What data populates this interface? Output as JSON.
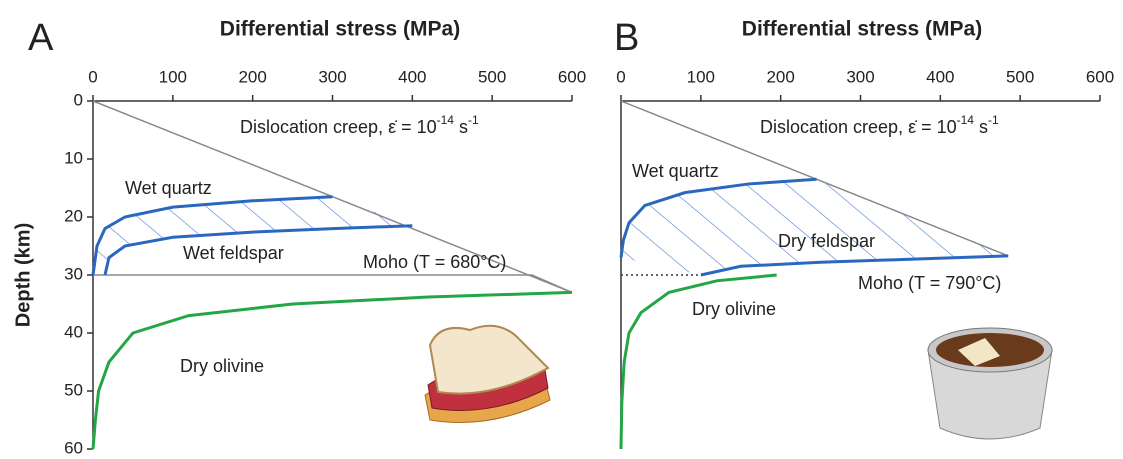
{
  "chart_data": [
    {
      "type": "line",
      "panel_label": "A",
      "title": "Differential stress (MPa)",
      "y_label": "Depth (km)",
      "xlim": [
        0,
        600
      ],
      "xticks": [
        0,
        100,
        200,
        300,
        400,
        500,
        600
      ],
      "ylim": [
        0,
        60
      ],
      "yticks": [
        0,
        10,
        20,
        30,
        40,
        50,
        60
      ],
      "creep_label": {
        "main": "Dislocation creep, ε̇ = 10",
        "exponent": "-14",
        "unit": " s",
        "unit_exponent": "-1"
      },
      "moho_label": "Moho (T = 680°C)",
      "series": [
        {
          "color": "#8a8a8a",
          "x": [
            0,
            600
          ],
          "values": [
            0,
            33
          ]
        },
        {
          "color": "#8a8a8a",
          "x": [
            0,
            550,
            600
          ],
          "values": [
            30,
            30,
            33
          ]
        },
        {
          "name": "Wet quartz",
          "color": "#2a68c0",
          "x": [
            0,
            5,
            15,
            40,
            100,
            200,
            300
          ],
          "values": [
            30,
            25,
            22,
            20,
            18.3,
            17.2,
            16.5
          ]
        },
        {
          "name": "Wet feldspar",
          "color": "#2a68c0",
          "x": [
            15,
            20,
            40,
            100,
            200,
            300,
            400
          ],
          "values": [
            30,
            27,
            25,
            23.5,
            22.6,
            22,
            21.5
          ]
        },
        {
          "name": "Dry olivine",
          "color": "#23a646",
          "x": [
            0,
            3,
            7,
            20,
            50,
            120,
            250,
            420,
            600
          ],
          "values": [
            60,
            55,
            50,
            45,
            40,
            37,
            35,
            33.8,
            33
          ]
        }
      ]
    },
    {
      "type": "line",
      "panel_label": "B",
      "title": "Differential stress (MPa)",
      "xlim": [
        0,
        600
      ],
      "xticks": [
        0,
        100,
        200,
        300,
        400,
        500,
        600
      ],
      "ylim": [
        0,
        60
      ],
      "creep_label": {
        "main": "Dislocation creep, ε̇ = 10",
        "exponent": "-14",
        "unit": " s",
        "unit_exponent": "-1"
      },
      "moho_label": "Moho (T = 790°C)",
      "series": [
        {
          "color": "#8a8a8a",
          "x": [
            0,
            485
          ],
          "values": [
            0,
            26.7
          ]
        },
        {
          "color": "#333333",
          "line_style": "dotted",
          "x": [
            0,
            100
          ],
          "values": [
            30,
            30
          ]
        },
        {
          "name": "Wet quartz",
          "color": "#2a68c0",
          "x": [
            0,
            3,
            10,
            30,
            80,
            160,
            245
          ],
          "values": [
            27,
            24,
            21,
            18,
            15.8,
            14.3,
            13.5
          ]
        },
        {
          "name": "Dry feldspar",
          "color": "#2a68c0",
          "x": [
            100,
            150,
            250,
            380,
            485
          ],
          "values": [
            30,
            28.5,
            27.8,
            27.2,
            26.7
          ]
        },
        {
          "name": "Dry olivine",
          "color": "#23a646",
          "x": [
            195,
            120,
            60,
            25,
            10,
            4,
            1,
            0
          ],
          "values": [
            30,
            31,
            33,
            36.5,
            40,
            45,
            52,
            60
          ]
        }
      ]
    }
  ]
}
